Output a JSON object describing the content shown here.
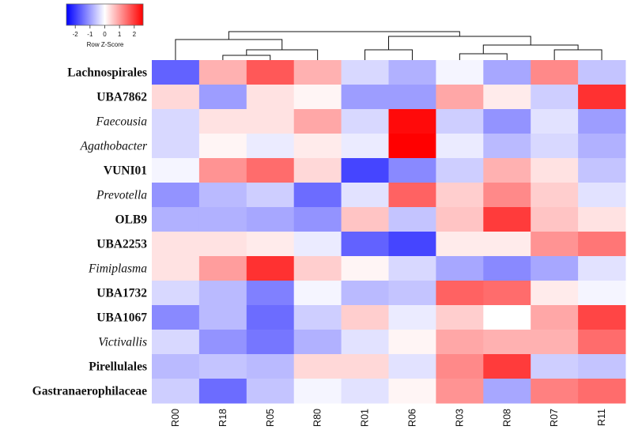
{
  "chart_data": {
    "type": "heatmap",
    "color_key": {
      "title": "Row Z-Score",
      "ticks": [
        "-2",
        "-1",
        "0",
        "1",
        "2"
      ],
      "range": [
        -2.6,
        2.6
      ],
      "low_color": "#0000ff",
      "mid_color": "#ffffff",
      "high_color": "#ff0000"
    },
    "columns": [
      "R00",
      "R18",
      "R05",
      "R80",
      "R01",
      "R06",
      "R03",
      "R08",
      "R07",
      "R11"
    ],
    "rows": [
      {
        "label": "Lachnospirales",
        "style": "bold",
        "values": [
          -1.6,
          0.8,
          1.7,
          0.8,
          -0.4,
          -0.8,
          -0.1,
          -0.9,
          1.2,
          -0.6
        ]
      },
      {
        "label": "UBA7862",
        "style": "bold",
        "values": [
          0.4,
          -1.0,
          0.3,
          0.1,
          -1.0,
          -1.0,
          0.9,
          0.2,
          -0.5,
          2.1
        ]
      },
      {
        "label": "Faecousia",
        "style": "italic",
        "values": [
          -0.4,
          0.3,
          0.3,
          0.9,
          -0.4,
          2.5,
          -0.5,
          -1.1,
          -0.3,
          -1.0
        ]
      },
      {
        "label": "Agathobacter",
        "style": "italic",
        "values": [
          -0.4,
          0.1,
          -0.2,
          0.2,
          -0.2,
          2.6,
          -0.2,
          -0.7,
          -0.4,
          -0.8
        ]
      },
      {
        "label": "VUNI01",
        "style": "bold",
        "values": [
          -0.1,
          1.1,
          1.5,
          0.4,
          -1.9,
          -1.2,
          -0.5,
          0.8,
          0.3,
          -0.6
        ]
      },
      {
        "label": "Prevotella",
        "style": "italic",
        "values": [
          -1.1,
          -0.7,
          -0.5,
          -1.5,
          -0.3,
          1.6,
          0.5,
          1.2,
          0.5,
          -0.3
        ]
      },
      {
        "label": "OLB9",
        "style": "bold",
        "values": [
          -0.8,
          -0.8,
          -0.9,
          -1.1,
          0.6,
          -0.6,
          0.6,
          2.0,
          0.6,
          0.3
        ]
      },
      {
        "label": "UBA2253",
        "style": "bold",
        "values": [
          0.3,
          0.3,
          0.2,
          -0.2,
          -1.6,
          -1.9,
          0.2,
          0.2,
          1.1,
          1.4
        ]
      },
      {
        "label": "Fimiplasma",
        "style": "italic",
        "values": [
          0.3,
          1.0,
          2.1,
          0.5,
          0.1,
          -0.4,
          -0.9,
          -1.2,
          -0.9,
          -0.3
        ]
      },
      {
        "label": "UBA1732",
        "style": "bold",
        "values": [
          -0.4,
          -0.7,
          -1.3,
          -0.1,
          -0.7,
          -0.6,
          1.6,
          1.5,
          0.2,
          -0.1
        ]
      },
      {
        "label": "UBA1067",
        "style": "bold",
        "values": [
          -1.2,
          -0.7,
          -1.5,
          -0.5,
          0.5,
          -0.2,
          0.5,
          0.0,
          0.9,
          1.9
        ]
      },
      {
        "label": "Victivallis",
        "style": "italic",
        "values": [
          -0.4,
          -1.1,
          -1.4,
          -0.8,
          -0.3,
          0.1,
          0.9,
          0.8,
          0.8,
          1.5
        ]
      },
      {
        "label": "Pirellulales",
        "style": "bold",
        "values": [
          -0.7,
          -0.6,
          -0.7,
          0.4,
          0.4,
          -0.3,
          1.2,
          2.0,
          -0.5,
          -0.6
        ]
      },
      {
        "label": "Gastranaerophilaceae",
        "style": "bold",
        "values": [
          -0.5,
          -1.5,
          -0.6,
          -0.1,
          -0.3,
          0.1,
          1.1,
          -0.9,
          1.3,
          1.5
        ]
      }
    ],
    "column_dendrogram": [
      {
        "order": [
          "R18",
          "R05"
        ]
      },
      {
        "order": [
          "R18",
          "R05",
          "R80"
        ]
      },
      {
        "order": [
          "R00",
          "R18",
          "R05",
          "R80"
        ]
      },
      {
        "order": [
          "R01",
          "R06"
        ]
      },
      {
        "order": [
          "R03",
          "R08"
        ]
      },
      {
        "order": [
          "R07",
          "R11"
        ]
      },
      {
        "order": [
          "R03",
          "R08",
          "R07",
          "R11"
        ]
      },
      {
        "order": [
          "R01",
          "R06",
          "R03",
          "R08",
          "R07",
          "R11"
        ]
      },
      {
        "order": [
          "R00",
          "R18",
          "R05",
          "R80",
          "R01",
          "R06",
          "R03",
          "R08",
          "R07",
          "R11"
        ]
      }
    ]
  }
}
